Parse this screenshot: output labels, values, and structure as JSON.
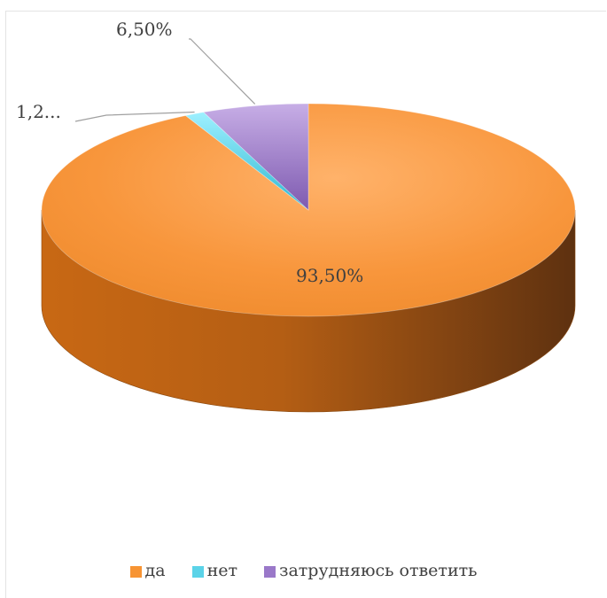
{
  "chart_data": {
    "type": "pie",
    "style": "3d",
    "categories": [
      "да",
      "нет",
      "затрудняюсь ответить"
    ],
    "values": [
      93.5,
      1.2,
      6.5
    ],
    "data_labels": [
      "93,50%",
      "1,2...",
      "6,50%"
    ],
    "colors": [
      "#F79433",
      "#5BD3E8",
      "#9A78C9"
    ],
    "legend": {
      "position": "bottom",
      "entries": [
        "да",
        "нет",
        "затрудняюсь ответить"
      ]
    }
  }
}
